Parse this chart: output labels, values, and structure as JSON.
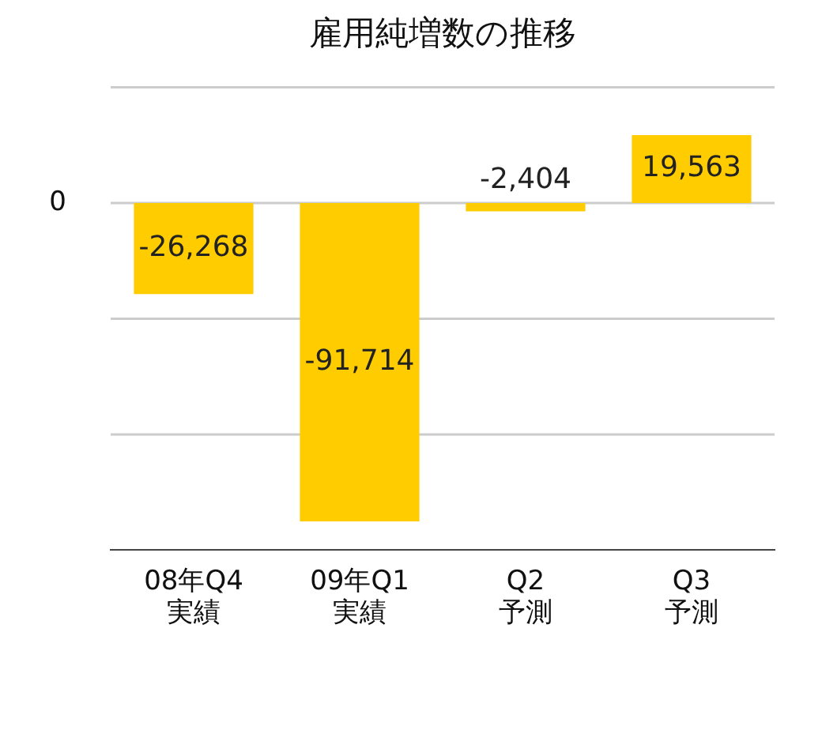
{
  "chart_data": {
    "type": "bar",
    "title": "雇用純増数の推移",
    "categories": [
      "08年Q4\n実績",
      "09年Q1\n実績",
      "Q2\n予測",
      "Q3\n予測"
    ],
    "values": [
      -26268,
      -91714,
      -2404,
      19563
    ],
    "value_labels": [
      "-26,268",
      "-91,714",
      "-2,404",
      "19,563"
    ],
    "color": "#ffcc00",
    "ylim": [
      -100000,
      33333
    ],
    "ref_lines": [
      {
        "axis": "y",
        "value": 33333,
        "label": null,
        "color": "#cccccc"
      },
      {
        "axis": "y",
        "value": 0,
        "label": "0",
        "color": "#cccccc"
      },
      {
        "axis": "y",
        "value": -33333,
        "label": null,
        "color": "#cccccc"
      },
      {
        "axis": "y",
        "value": -66667,
        "label": null,
        "color": "#cccccc"
      }
    ],
    "tick_labels": "x",
    "legend": false
  }
}
